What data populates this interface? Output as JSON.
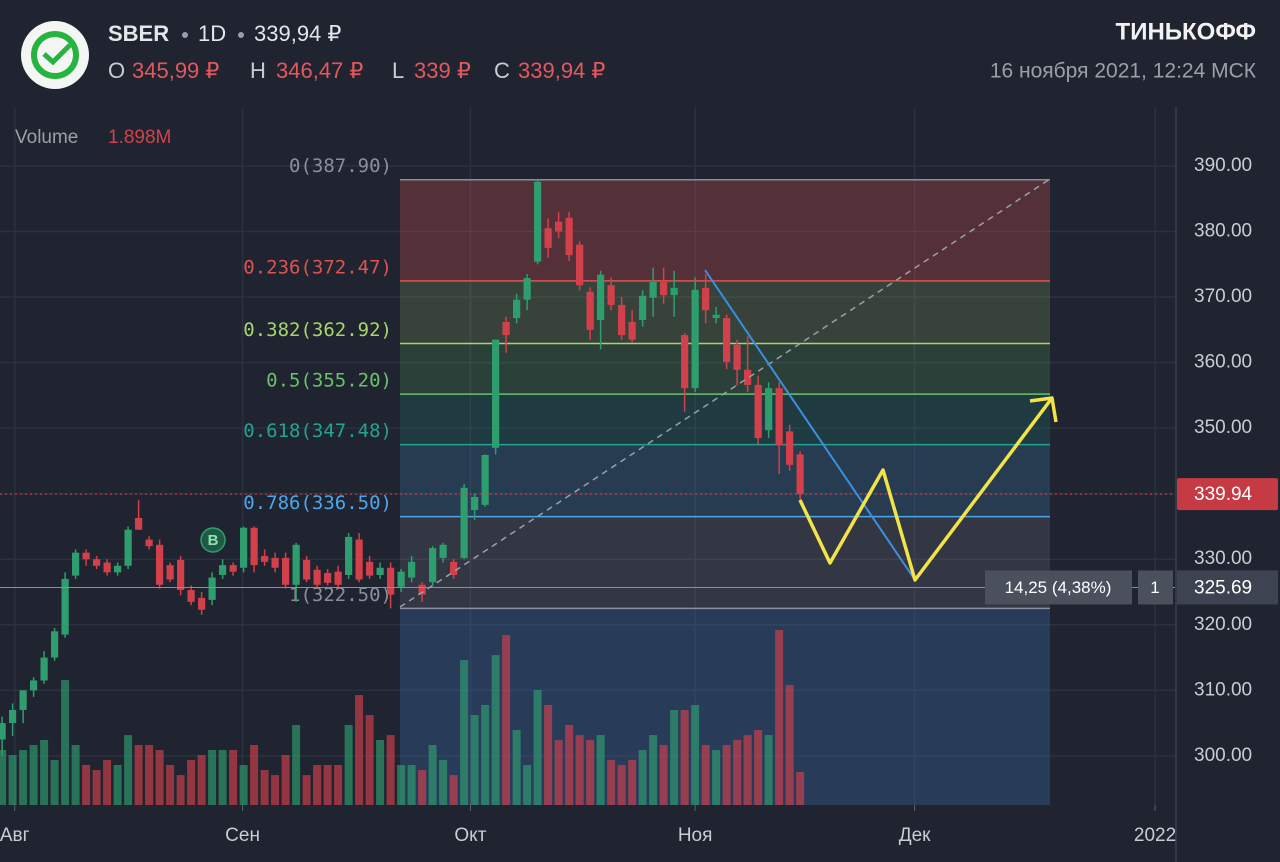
{
  "header": {
    "ticker": "SBER",
    "interval": "1D",
    "price": "339,94 ₽",
    "ohlc": [
      {
        "key": "O",
        "value": "345,99 ₽"
      },
      {
        "key": "H",
        "value": "346,47 ₽"
      },
      {
        "key": "L",
        "value": "339 ₽"
      },
      {
        "key": "C",
        "value": "339,94 ₽"
      }
    ],
    "brand": "ТИНЬКОФФ",
    "datetime": "16 ноября 2021, 12:24 МСК"
  },
  "chart_data": {
    "type": "candlestick",
    "volume_label": "Volume",
    "volume_last": "1.898M",
    "open": [
      302.5,
      305,
      307,
      310,
      311.5,
      315,
      318.5,
      327.5,
      331,
      330,
      329.5,
      328,
      329,
      336.3,
      333,
      332.2,
      329.1,
      329.9,
      325.3,
      324.1,
      323.8,
      327.6,
      329.1,
      328.7,
      334.8,
      330.5,
      330.2,
      330.2,
      326.1,
      329.9,
      328.4,
      327.9,
      328.1,
      327.6,
      333,
      329.6,
      327.6,
      328.7,
      325.8,
      327.2,
      326.1,
      326.5,
      330.2,
      329.6,
      330.2,
      337.5,
      338.3,
      347,
      366.2,
      366.8,
      369.6,
      375.4,
      380.5,
      381.5,
      382.1,
      378,
      370.8,
      366.5,
      371.8,
      368.8,
      366.2,
      366.5,
      369.9,
      372.3,
      370.3,
      364.2,
      356.1,
      371.4,
      366.8,
      366.8,
      362.7,
      358.9,
      356.6,
      349.7,
      356.1,
      349.5,
      345.99
    ],
    "high": [
      306,
      308,
      310,
      312,
      316,
      319.5,
      328,
      331.5,
      331.5,
      330.5,
      330,
      329.5,
      335,
      339,
      333.5,
      333,
      329.5,
      330.5,
      326,
      325,
      328,
      330,
      329.5,
      335,
      335,
      331.5,
      331,
      331,
      332.5,
      330.5,
      329,
      328.5,
      329,
      334,
      334,
      330.5,
      329.5,
      329.5,
      328.5,
      330.5,
      326.5,
      332,
      332.5,
      330,
      341.5,
      340,
      346,
      363.5,
      367,
      370.5,
      373.5,
      387.9,
      382,
      383,
      383,
      378.5,
      371.5,
      374,
      373,
      370,
      368,
      371,
      374.5,
      374.5,
      374,
      364.5,
      373,
      373.5,
      368.5,
      367.3,
      363.5,
      364,
      358,
      357,
      357,
      350.5,
      346.47
    ],
    "low": [
      300,
      303,
      305,
      309,
      311,
      314.5,
      318,
      327,
      329,
      328.5,
      327.5,
      327.5,
      328.5,
      334.5,
      331.5,
      325.5,
      326.5,
      324.5,
      323,
      321.5,
      323,
      327,
      327.5,
      328,
      328,
      329,
      328,
      325.5,
      323.5,
      326.5,
      325.5,
      326,
      325.5,
      327,
      326.5,
      327,
      327,
      322.5,
      325,
      326.5,
      323.5,
      326,
      329.5,
      327,
      330,
      336,
      338,
      346,
      361.5,
      366,
      368,
      375,
      376,
      379,
      375.5,
      371,
      363.5,
      362,
      368,
      363.5,
      363,
      365.5,
      367,
      369,
      367,
      352.5,
      355.5,
      366,
      366,
      359,
      356.5,
      355.5,
      347.5,
      348.5,
      343,
      343.5,
      339
    ],
    "close": [
      305,
      307,
      310,
      311.5,
      315,
      319,
      327,
      331,
      330,
      329,
      328,
      329,
      334.5,
      334.5,
      332,
      326.1,
      326.9,
      325.3,
      323.5,
      322.3,
      327.2,
      329.1,
      328.1,
      334.8,
      329.1,
      329.6,
      328.7,
      326.1,
      332.2,
      326.9,
      326.1,
      326.4,
      326.1,
      333.4,
      326.9,
      327.5,
      328.7,
      324.6,
      328.1,
      329.6,
      324.6,
      331.7,
      332.2,
      327.6,
      340.9,
      339.5,
      345.9,
      363.5,
      364.2,
      369.6,
      372.9,
      387.6,
      377.5,
      380,
      376.4,
      371.8,
      365,
      373.4,
      368.8,
      364.2,
      363.5,
      370.2,
      372.3,
      370.3,
      371.4,
      356.1,
      371.1,
      368,
      367.3,
      360.1,
      358.9,
      356.6,
      348.5,
      356.1,
      347.4,
      344.4,
      339.94
    ],
    "volume": [
      3.16,
      2.87,
      3.16,
      3.45,
      3.74,
      2.59,
      7.18,
      3.45,
      2.3,
      2.01,
      2.59,
      2.3,
      4.02,
      3.45,
      3.45,
      3.16,
      2.3,
      1.72,
      2.59,
      2.87,
      3.16,
      3.16,
      3.16,
      2.3,
      3.45,
      2.01,
      1.72,
      2.87,
      4.6,
      1.72,
      2.3,
      2.3,
      2.3,
      4.6,
      6.32,
      5.17,
      3.74,
      4.02,
      2.3,
      2.3,
      2.01,
      3.45,
      2.59,
      1.72,
      8.33,
      5.17,
      5.75,
      8.62,
      9.77,
      4.31,
      2.3,
      6.61,
      5.75,
      3.74,
      4.6,
      4.02,
      3.74,
      4.02,
      2.59,
      2.3,
      2.59,
      3.16,
      4.02,
      3.45,
      5.46,
      5.46,
      5.75,
      3.45,
      3.16,
      3.45,
      3.74,
      4.02,
      4.31,
      4.02,
      10.06,
      6.9,
      1.898
    ],
    "up_color": "#2f9e6e",
    "down_color": "#d2414b",
    "xlim": [
      -0.2,
      111.7
    ],
    "xticks": [
      {
        "value": 1.2,
        "label": "Авг"
      },
      {
        "value": 22.9,
        "label": "Сен"
      },
      {
        "value": 44.6,
        "label": "Окт"
      },
      {
        "value": 66,
        "label": "Ноя"
      },
      {
        "value": 86.9,
        "label": "Дек"
      },
      {
        "value": 109.8,
        "label": "2022"
      }
    ],
    "ylim": [
      292.5,
      399
    ],
    "yticks": [
      {
        "value": 300,
        "label": "300.00"
      },
      {
        "value": 310,
        "label": "310.00"
      },
      {
        "value": 320,
        "label": "320.00"
      },
      {
        "value": 330,
        "label": "330.00"
      },
      {
        "value": 340,
        "label": "340.00"
      },
      {
        "value": 350,
        "label": "350.00"
      },
      {
        "value": 360,
        "label": "360.00"
      },
      {
        "value": 370,
        "label": "370.00"
      },
      {
        "value": 380,
        "label": "380.00"
      },
      {
        "value": 390,
        "label": "390.00"
      }
    ],
    "grid": true,
    "fib_levels": [
      {
        "label": "0(387.90)",
        "value": 387.9,
        "color": "#8a8f99"
      },
      {
        "label": "0.236(372.47)",
        "value": 372.47,
        "color": "#e0524f"
      },
      {
        "label": "0.382(362.92)",
        "value": 362.92,
        "color": "#a8d46c"
      },
      {
        "label": "0.5(355.20)",
        "value": 355.2,
        "color": "#6cc06c"
      },
      {
        "label": "0.618(347.48)",
        "value": 347.48,
        "color": "#22a392"
      },
      {
        "label": "0.786(336.50)",
        "value": 336.5,
        "color": "#4ea6ea"
      },
      {
        "label": "1(322.50)",
        "value": 322.5,
        "color": "#8a8f99"
      }
    ],
    "last_price": {
      "value": 339.94,
      "label": "339.94"
    },
    "cursor": {
      "value": 325.69,
      "label": "325.69",
      "measure": "14,25 (4,38%)",
      "count": "1"
    },
    "marker": "B"
  }
}
